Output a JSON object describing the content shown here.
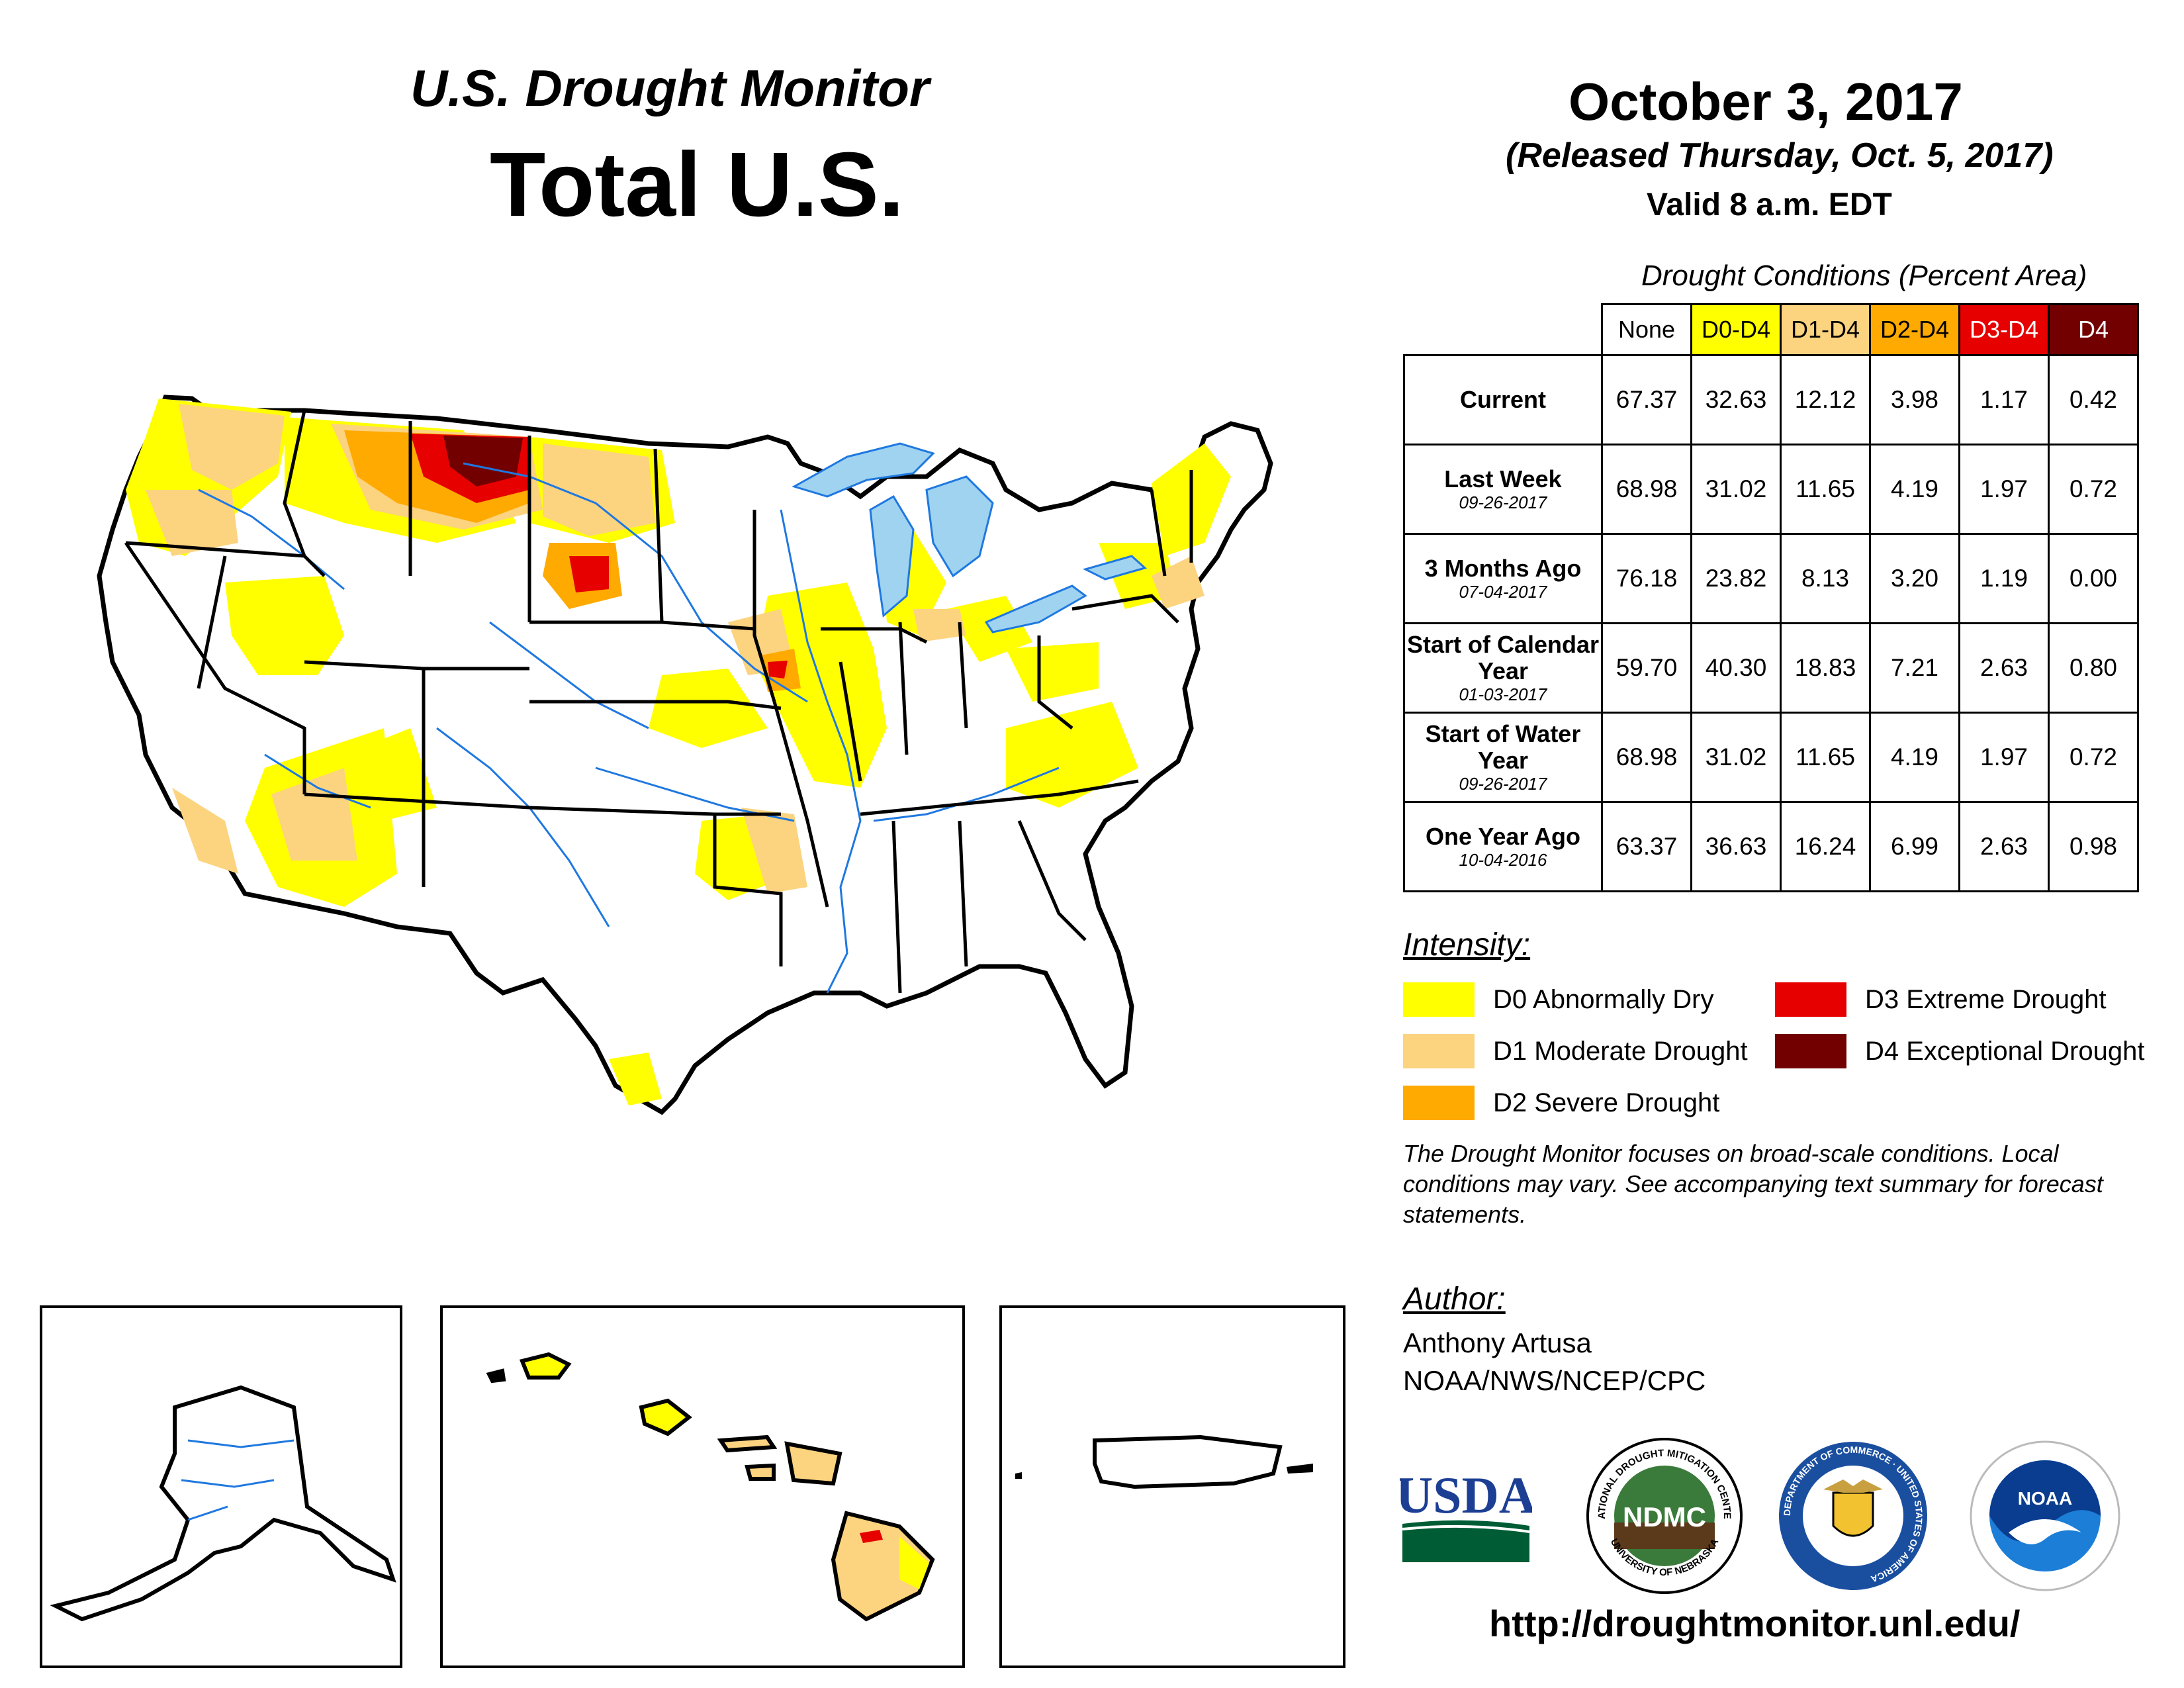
{
  "header": {
    "product": "U.S. Drought Monitor",
    "region": "Total U.S.",
    "date": "October 3, 2017",
    "released": "(Released Thursday, Oct. 5, 2017)",
    "valid": "Valid 8 a.m. EDT"
  },
  "table": {
    "caption": "Drought Conditions (Percent Area)",
    "columns": [
      "None",
      "D0-D4",
      "D1-D4",
      "D2-D4",
      "D3-D4",
      "D4"
    ],
    "column_colors": [
      "#ffffff",
      "#ffff00",
      "#fcd37f",
      "#ffaa00",
      "#e60000",
      "#730000"
    ],
    "rows": [
      {
        "label": "Current",
        "date": "",
        "values": [
          "67.37",
          "32.63",
          "12.12",
          "3.98",
          "1.17",
          "0.42"
        ]
      },
      {
        "label": "Last Week",
        "date": "09-26-2017",
        "values": [
          "68.98",
          "31.02",
          "11.65",
          "4.19",
          "1.97",
          "0.72"
        ]
      },
      {
        "label": "3 Months Ago",
        "date": "07-04-2017",
        "values": [
          "76.18",
          "23.82",
          "8.13",
          "3.20",
          "1.19",
          "0.00"
        ]
      },
      {
        "label": "Start of Calendar Year",
        "date": "01-03-2017",
        "values": [
          "59.70",
          "40.30",
          "18.83",
          "7.21",
          "2.63",
          "0.80"
        ]
      },
      {
        "label": "Start of Water Year",
        "date": "09-26-2017",
        "values": [
          "68.98",
          "31.02",
          "11.65",
          "4.19",
          "1.97",
          "0.72"
        ]
      },
      {
        "label": "One Year Ago",
        "date": "10-04-2016",
        "values": [
          "63.37",
          "36.63",
          "16.24",
          "6.99",
          "2.63",
          "0.98"
        ]
      }
    ]
  },
  "legend": {
    "title": "Intensity:",
    "items": [
      {
        "label": "D0 Abnormally Dry",
        "color": "#ffff00"
      },
      {
        "label": "D1 Moderate Drought",
        "color": "#fcd37f"
      },
      {
        "label": "D2 Severe Drought",
        "color": "#ffaa00"
      },
      {
        "label": "D3 Extreme Drought",
        "color": "#e60000"
      },
      {
        "label": "D4 Exceptional Drought",
        "color": "#730000"
      }
    ]
  },
  "note": "The Drought Monitor focuses on broad-scale conditions. Local conditions may vary. See accompanying text summary for forecast statements.",
  "author": {
    "title": "Author:",
    "name": "Anthony Artusa",
    "org": "NOAA/NWS/NCEP/CPC"
  },
  "logos": {
    "usda": "USDA",
    "ndmc": "NDMC",
    "ndmc_ring_top": "NATIONAL DROUGHT MITIGATION CENTER",
    "ndmc_ring_bottom": "UNIVERSITY OF NEBRASKA",
    "commerce_ring": "DEPARTMENT OF COMMERCE · UNITED STATES OF AMERICA",
    "noaa": "NOAA"
  },
  "url": "http://droughtmonitor.unl.edu/",
  "colors": {
    "water": "#9fd3f0",
    "river": "#1f78e0",
    "border": "#000000"
  }
}
